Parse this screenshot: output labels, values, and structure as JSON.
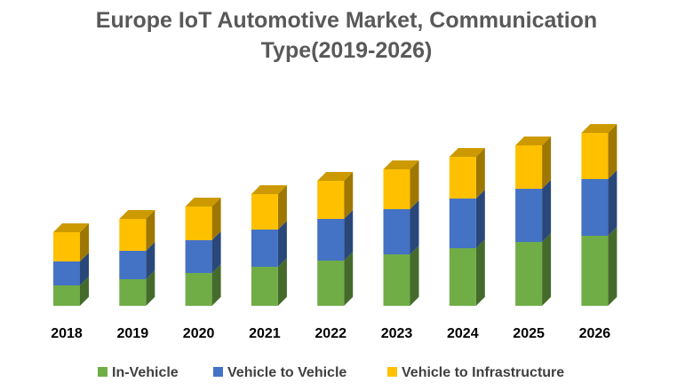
{
  "chart_data": {
    "type": "bar",
    "stacked": true,
    "style": "3d-column",
    "title_line1": "Europe IoT Automotive Market, Communication",
    "title_line2": "Type(2019-2026)",
    "xlabel": "",
    "ylabel": "",
    "categories": [
      "2018",
      "2019",
      "2020",
      "2021",
      "2022",
      "2023",
      "2024",
      "2025",
      "2026"
    ],
    "series": [
      {
        "name": "In-Vehicle",
        "color": "#70AD47",
        "values": [
          23,
          30,
          37,
          44,
          51,
          58,
          65,
          72,
          79
        ]
      },
      {
        "name": "Vehicle to Vehicle",
        "color": "#4472C4",
        "values": [
          27,
          32,
          37,
          42,
          47,
          51,
          56,
          60,
          64
        ]
      },
      {
        "name": "Vehicle to Infrastructure",
        "color": "#FFC000",
        "values": [
          33,
          36,
          38,
          40,
          43,
          45,
          47,
          49,
          52
        ]
      }
    ],
    "ylim": [
      0,
      210
    ],
    "grid": false,
    "legend_position": "bottom"
  }
}
